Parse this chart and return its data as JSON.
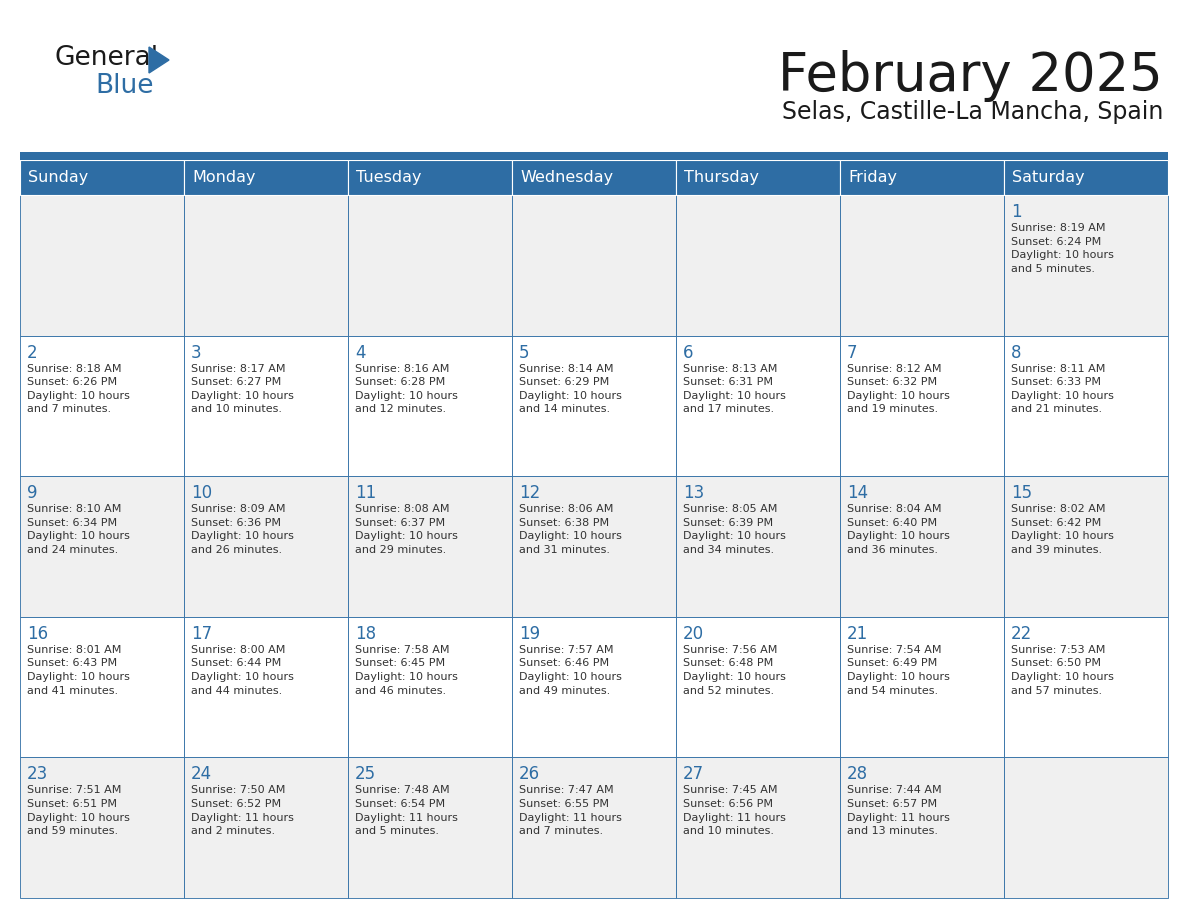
{
  "title": "February 2025",
  "subtitle": "Selas, Castille-La Mancha, Spain",
  "header_bg": "#2E6DA4",
  "header_text_color": "#FFFFFF",
  "cell_bg_odd": "#F0F0F0",
  "cell_bg_even": "#FFFFFF",
  "border_color": "#2E6DA4",
  "separator_color": "#2E6DA4",
  "day_headers": [
    "Sunday",
    "Monday",
    "Tuesday",
    "Wednesday",
    "Thursday",
    "Friday",
    "Saturday"
  ],
  "title_color": "#1a1a1a",
  "subtitle_color": "#1a1a1a",
  "cell_text_color": "#333333",
  "day_number_color": "#2E6DA4",
  "logo_general_color": "#1a1a1a",
  "logo_blue_color": "#2E6DA4",
  "logo_triangle_color": "#2E6DA4",
  "weeks": [
    [
      {
        "day": null,
        "info": null
      },
      {
        "day": null,
        "info": null
      },
      {
        "day": null,
        "info": null
      },
      {
        "day": null,
        "info": null
      },
      {
        "day": null,
        "info": null
      },
      {
        "day": null,
        "info": null
      },
      {
        "day": 1,
        "info": "Sunrise: 8:19 AM\nSunset: 6:24 PM\nDaylight: 10 hours\nand 5 minutes."
      }
    ],
    [
      {
        "day": 2,
        "info": "Sunrise: 8:18 AM\nSunset: 6:26 PM\nDaylight: 10 hours\nand 7 minutes."
      },
      {
        "day": 3,
        "info": "Sunrise: 8:17 AM\nSunset: 6:27 PM\nDaylight: 10 hours\nand 10 minutes."
      },
      {
        "day": 4,
        "info": "Sunrise: 8:16 AM\nSunset: 6:28 PM\nDaylight: 10 hours\nand 12 minutes."
      },
      {
        "day": 5,
        "info": "Sunrise: 8:14 AM\nSunset: 6:29 PM\nDaylight: 10 hours\nand 14 minutes."
      },
      {
        "day": 6,
        "info": "Sunrise: 8:13 AM\nSunset: 6:31 PM\nDaylight: 10 hours\nand 17 minutes."
      },
      {
        "day": 7,
        "info": "Sunrise: 8:12 AM\nSunset: 6:32 PM\nDaylight: 10 hours\nand 19 minutes."
      },
      {
        "day": 8,
        "info": "Sunrise: 8:11 AM\nSunset: 6:33 PM\nDaylight: 10 hours\nand 21 minutes."
      }
    ],
    [
      {
        "day": 9,
        "info": "Sunrise: 8:10 AM\nSunset: 6:34 PM\nDaylight: 10 hours\nand 24 minutes."
      },
      {
        "day": 10,
        "info": "Sunrise: 8:09 AM\nSunset: 6:36 PM\nDaylight: 10 hours\nand 26 minutes."
      },
      {
        "day": 11,
        "info": "Sunrise: 8:08 AM\nSunset: 6:37 PM\nDaylight: 10 hours\nand 29 minutes."
      },
      {
        "day": 12,
        "info": "Sunrise: 8:06 AM\nSunset: 6:38 PM\nDaylight: 10 hours\nand 31 minutes."
      },
      {
        "day": 13,
        "info": "Sunrise: 8:05 AM\nSunset: 6:39 PM\nDaylight: 10 hours\nand 34 minutes."
      },
      {
        "day": 14,
        "info": "Sunrise: 8:04 AM\nSunset: 6:40 PM\nDaylight: 10 hours\nand 36 minutes."
      },
      {
        "day": 15,
        "info": "Sunrise: 8:02 AM\nSunset: 6:42 PM\nDaylight: 10 hours\nand 39 minutes."
      }
    ],
    [
      {
        "day": 16,
        "info": "Sunrise: 8:01 AM\nSunset: 6:43 PM\nDaylight: 10 hours\nand 41 minutes."
      },
      {
        "day": 17,
        "info": "Sunrise: 8:00 AM\nSunset: 6:44 PM\nDaylight: 10 hours\nand 44 minutes."
      },
      {
        "day": 18,
        "info": "Sunrise: 7:58 AM\nSunset: 6:45 PM\nDaylight: 10 hours\nand 46 minutes."
      },
      {
        "day": 19,
        "info": "Sunrise: 7:57 AM\nSunset: 6:46 PM\nDaylight: 10 hours\nand 49 minutes."
      },
      {
        "day": 20,
        "info": "Sunrise: 7:56 AM\nSunset: 6:48 PM\nDaylight: 10 hours\nand 52 minutes."
      },
      {
        "day": 21,
        "info": "Sunrise: 7:54 AM\nSunset: 6:49 PM\nDaylight: 10 hours\nand 54 minutes."
      },
      {
        "day": 22,
        "info": "Sunrise: 7:53 AM\nSunset: 6:50 PM\nDaylight: 10 hours\nand 57 minutes."
      }
    ],
    [
      {
        "day": 23,
        "info": "Sunrise: 7:51 AM\nSunset: 6:51 PM\nDaylight: 10 hours\nand 59 minutes."
      },
      {
        "day": 24,
        "info": "Sunrise: 7:50 AM\nSunset: 6:52 PM\nDaylight: 11 hours\nand 2 minutes."
      },
      {
        "day": 25,
        "info": "Sunrise: 7:48 AM\nSunset: 6:54 PM\nDaylight: 11 hours\nand 5 minutes."
      },
      {
        "day": 26,
        "info": "Sunrise: 7:47 AM\nSunset: 6:55 PM\nDaylight: 11 hours\nand 7 minutes."
      },
      {
        "day": 27,
        "info": "Sunrise: 7:45 AM\nSunset: 6:56 PM\nDaylight: 11 hours\nand 10 minutes."
      },
      {
        "day": 28,
        "info": "Sunrise: 7:44 AM\nSunset: 6:57 PM\nDaylight: 11 hours\nand 13 minutes."
      },
      {
        "day": null,
        "info": null
      }
    ]
  ]
}
